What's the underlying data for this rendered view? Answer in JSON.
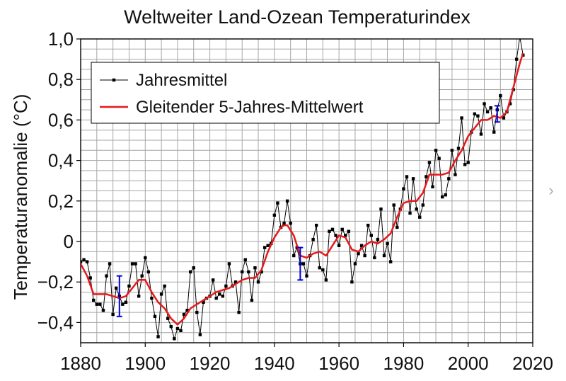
{
  "chart_data": {
    "type": "line",
    "title": "Weltweiter Land-Ozean Temperaturindex",
    "xlabel": "",
    "ylabel": "Temperaturanomalie (°C)",
    "xlim": [
      1880,
      2020
    ],
    "ylim": [
      -0.5,
      1.0
    ],
    "x_ticks": [
      1880,
      1900,
      1920,
      1940,
      1960,
      1980,
      2000,
      2020
    ],
    "x_tick_labels": [
      "1880",
      "1900",
      "1920",
      "1940",
      "1960",
      "1980",
      "2000",
      "2020"
    ],
    "y_ticks": [
      1.0,
      0.8,
      0.6,
      0.4,
      0.2,
      0,
      -0.2,
      -0.4
    ],
    "y_tick_labels": [
      "1,0",
      "0,8",
      "0,6",
      "0,4",
      "0,2",
      "0",
      "−0,2",
      "−0,4"
    ],
    "grid": true,
    "legend_position": "top-left",
    "series": [
      {
        "name": "Jahresmittel",
        "color": "#000000",
        "marker": "square",
        "x": [
          1880,
          1881,
          1882,
          1883,
          1884,
          1885,
          1886,
          1887,
          1888,
          1889,
          1890,
          1891,
          1892,
          1893,
          1894,
          1895,
          1896,
          1897,
          1898,
          1899,
          1900,
          1901,
          1902,
          1903,
          1904,
          1905,
          1906,
          1907,
          1908,
          1909,
          1910,
          1911,
          1912,
          1913,
          1914,
          1915,
          1916,
          1917,
          1918,
          1919,
          1920,
          1921,
          1922,
          1923,
          1924,
          1925,
          1926,
          1927,
          1928,
          1929,
          1930,
          1931,
          1932,
          1933,
          1934,
          1935,
          1936,
          1937,
          1938,
          1939,
          1940,
          1941,
          1942,
          1943,
          1944,
          1945,
          1946,
          1947,
          1948,
          1949,
          1950,
          1951,
          1952,
          1953,
          1954,
          1955,
          1956,
          1957,
          1958,
          1959,
          1960,
          1961,
          1962,
          1963,
          1964,
          1965,
          1966,
          1967,
          1968,
          1969,
          1970,
          1971,
          1972,
          1973,
          1974,
          1975,
          1976,
          1977,
          1978,
          1979,
          1980,
          1981,
          1982,
          1983,
          1984,
          1985,
          1986,
          1987,
          1988,
          1989,
          1990,
          1991,
          1992,
          1993,
          1994,
          1995,
          1996,
          1997,
          1998,
          1999,
          2000,
          2001,
          2002,
          2003,
          2004,
          2005,
          2006,
          2007,
          2008,
          2009,
          2010,
          2011,
          2012,
          2013,
          2014,
          2015,
          2016,
          2017
        ],
        "y": [
          -0.1,
          -0.09,
          -0.1,
          -0.18,
          -0.29,
          -0.31,
          -0.31,
          -0.34,
          -0.17,
          -0.11,
          -0.36,
          -0.23,
          -0.27,
          -0.31,
          -0.3,
          -0.22,
          -0.11,
          -0.11,
          -0.27,
          -0.17,
          -0.08,
          -0.15,
          -0.28,
          -0.37,
          -0.47,
          -0.26,
          -0.22,
          -0.38,
          -0.42,
          -0.48,
          -0.43,
          -0.44,
          -0.36,
          -0.34,
          -0.15,
          -0.13,
          -0.35,
          -0.46,
          -0.3,
          -0.28,
          -0.27,
          -0.19,
          -0.28,
          -0.26,
          -0.27,
          -0.22,
          -0.11,
          -0.22,
          -0.2,
          -0.35,
          -0.15,
          -0.09,
          -0.15,
          -0.29,
          -0.13,
          -0.2,
          -0.15,
          -0.03,
          -0.02,
          -0.01,
          0.13,
          0.19,
          0.07,
          0.09,
          0.2,
          0.09,
          -0.07,
          -0.03,
          -0.11,
          -0.11,
          -0.17,
          -0.07,
          0.01,
          0.08,
          -0.13,
          -0.14,
          -0.19,
          0.05,
          0.06,
          0.03,
          -0.02,
          0.06,
          0.03,
          0.05,
          -0.2,
          -0.11,
          -0.06,
          -0.02,
          -0.07,
          0.08,
          0.03,
          -0.08,
          0.01,
          0.16,
          -0.07,
          -0.01,
          -0.1,
          0.18,
          0.07,
          0.16,
          0.26,
          0.32,
          0.14,
          0.31,
          0.16,
          0.12,
          0.18,
          0.32,
          0.39,
          0.27,
          0.45,
          0.41,
          0.22,
          0.23,
          0.31,
          0.45,
          0.33,
          0.46,
          0.61,
          0.38,
          0.39,
          0.54,
          0.63,
          0.62,
          0.53,
          0.68,
          0.64,
          0.66,
          0.54,
          0.65,
          0.72,
          0.61,
          0.64,
          0.68,
          0.75,
          0.9,
          1.01,
          0.92
        ],
        "error_bars": [
          {
            "x": 1892,
            "low": -0.37,
            "high": -0.17
          },
          {
            "x": 1948,
            "low": -0.19,
            "high": -0.03
          },
          {
            "x": 2009,
            "low": 0.59,
            "high": 0.67
          }
        ]
      },
      {
        "name": "Gleitender 5-Jahres-Mittelwert",
        "color": "#e41a1c",
        "x": [
          1880,
          1882,
          1884,
          1886,
          1888,
          1890,
          1892,
          1894,
          1896,
          1898,
          1900,
          1902,
          1904,
          1906,
          1908,
          1910,
          1912,
          1914,
          1916,
          1918,
          1920,
          1922,
          1924,
          1926,
          1928,
          1930,
          1932,
          1934,
          1936,
          1938,
          1940,
          1942,
          1943,
          1944,
          1946,
          1948,
          1950,
          1952,
          1954,
          1956,
          1958,
          1960,
          1962,
          1964,
          1966,
          1968,
          1970,
          1972,
          1974,
          1976,
          1978,
          1980,
          1982,
          1984,
          1986,
          1988,
          1990,
          1992,
          1994,
          1996,
          1998,
          2000,
          2002,
          2004,
          2006,
          2008,
          2010,
          2012,
          2014,
          2016,
          2017
        ],
        "y": [
          -0.11,
          -0.17,
          -0.26,
          -0.26,
          -0.26,
          -0.27,
          -0.28,
          -0.27,
          -0.23,
          -0.19,
          -0.19,
          -0.25,
          -0.3,
          -0.33,
          -0.38,
          -0.41,
          -0.38,
          -0.33,
          -0.31,
          -0.29,
          -0.27,
          -0.25,
          -0.24,
          -0.23,
          -0.21,
          -0.19,
          -0.18,
          -0.18,
          -0.14,
          -0.05,
          0.02,
          0.07,
          0.08,
          0.08,
          0.03,
          -0.07,
          -0.08,
          -0.06,
          -0.05,
          -0.07,
          -0.02,
          0.03,
          0.02,
          -0.04,
          -0.05,
          -0.02,
          -0.0,
          -0.01,
          0.01,
          0.04,
          0.12,
          0.19,
          0.2,
          0.2,
          0.24,
          0.33,
          0.33,
          0.33,
          0.34,
          0.4,
          0.45,
          0.52,
          0.56,
          0.6,
          0.6,
          0.62,
          0.61,
          0.64,
          0.76,
          0.88,
          0.93
        ]
      }
    ]
  }
}
